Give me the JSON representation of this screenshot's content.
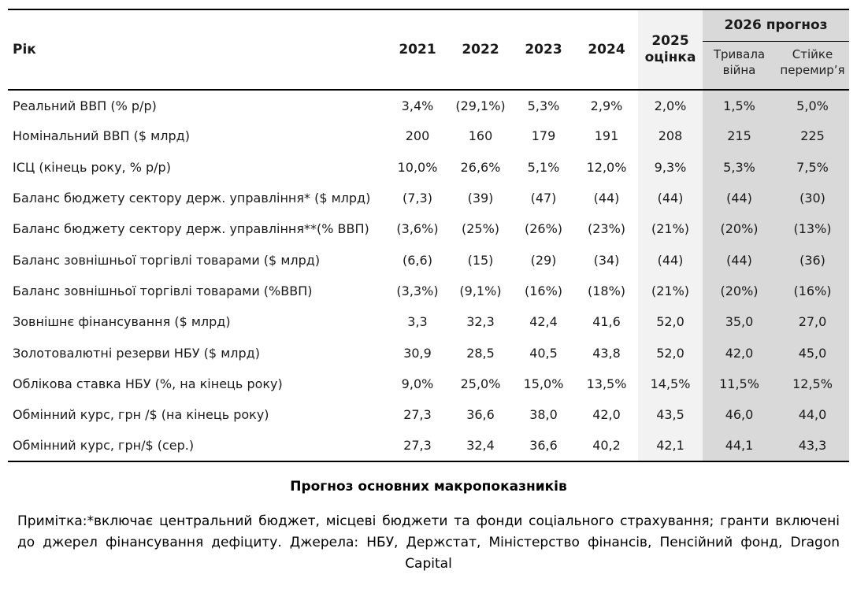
{
  "table": {
    "corner_label": "Рік",
    "year_columns": [
      "2021",
      "2022",
      "2023",
      "2024"
    ],
    "estimate_column": "2025 оцінка",
    "forecast_group": "2026 прогноз",
    "forecast_subcolumns": [
      "Тривала війна",
      "Стійке перемир’я"
    ],
    "rows": [
      {
        "label": "Реальний ВВП (% р/р)",
        "values": [
          "3,4%",
          "(29,1%)",
          "5,3%",
          "2,9%",
          "2,0%",
          "1,5%",
          "5,0%"
        ]
      },
      {
        "label": "Номінальний ВВП ($ млрд)",
        "values": [
          "200",
          "160",
          "179",
          "191",
          "208",
          "215",
          "225"
        ]
      },
      {
        "label": "ІСЦ (кінець року, % р/р)",
        "values": [
          "10,0%",
          "26,6%",
          "5,1%",
          "12,0%",
          "9,3%",
          "5,3%",
          "7,5%"
        ]
      },
      {
        "label": "Баланс бюджету сектору держ. управління* ($ млрд)",
        "values": [
          "(7,3)",
          "(39)",
          "(47)",
          "(44)",
          "(44)",
          "(44)",
          "(30)"
        ]
      },
      {
        "label": "Баланс бюджету сектору держ. управління**(% ВВП)",
        "values": [
          "(3,6%)",
          "(25%)",
          "(26%)",
          "(23%)",
          "(21%)",
          "(20%)",
          "(13%)"
        ]
      },
      {
        "label": "Баланс зовнішньої торгівлі товарами ($  млрд)",
        "values": [
          "(6,6)",
          "(15)",
          "(29)",
          "(34)",
          "(44)",
          "(44)",
          "(36)"
        ]
      },
      {
        "label": "Баланс зовнішньої торгівлі товарами (%ВВП)",
        "values": [
          "(3,3%)",
          "(9,1%)",
          "(16%)",
          "(18%)",
          "(21%)",
          "(20%)",
          "(16%)"
        ]
      },
      {
        "label": "Зовнішнє фінансування ($ млрд)",
        "values": [
          "3,3",
          "32,3",
          "42,4",
          "41,6",
          "52,0",
          "35,0",
          "27,0"
        ]
      },
      {
        "label": "Золотовалютні резерви НБУ ($ млрд)",
        "values": [
          "30,9",
          "28,5",
          "40,5",
          "43,8",
          "52,0",
          "42,0",
          "45,0"
        ]
      },
      {
        "label": "Облікова ставка НБУ (%, на кінець року)",
        "values": [
          "9,0%",
          "25,0%",
          "15,0%",
          "13,5%",
          "14,5%",
          "11,5%",
          "12,5%"
        ]
      },
      {
        "label": "Обмінний курс, грн /$ (на кінець року)",
        "values": [
          "27,3",
          "36,6",
          "38,0",
          "42,0",
          "43,5",
          "46,0",
          "44,0"
        ]
      },
      {
        "label": "Обмінний курс, грн/$  (сер.)",
        "values": [
          "27,3",
          "32,4",
          "36,6",
          "40,2",
          "42,1",
          "44,1",
          "43,3"
        ]
      }
    ]
  },
  "caption": "Прогноз основних макропоказників",
  "note": "Примітка:*включає центральний бюджет, місцеві бюджети та фонди соціального страхування; гранти включені до джерел фінансування дефіциту. Джерела: НБУ, Держстат, Міністерство фінансів, Пенсійний фонд, Dragon Capital",
  "colors": {
    "estimate_bg": "#f2f2f2",
    "forecast_bg": "#d9d9d9"
  }
}
